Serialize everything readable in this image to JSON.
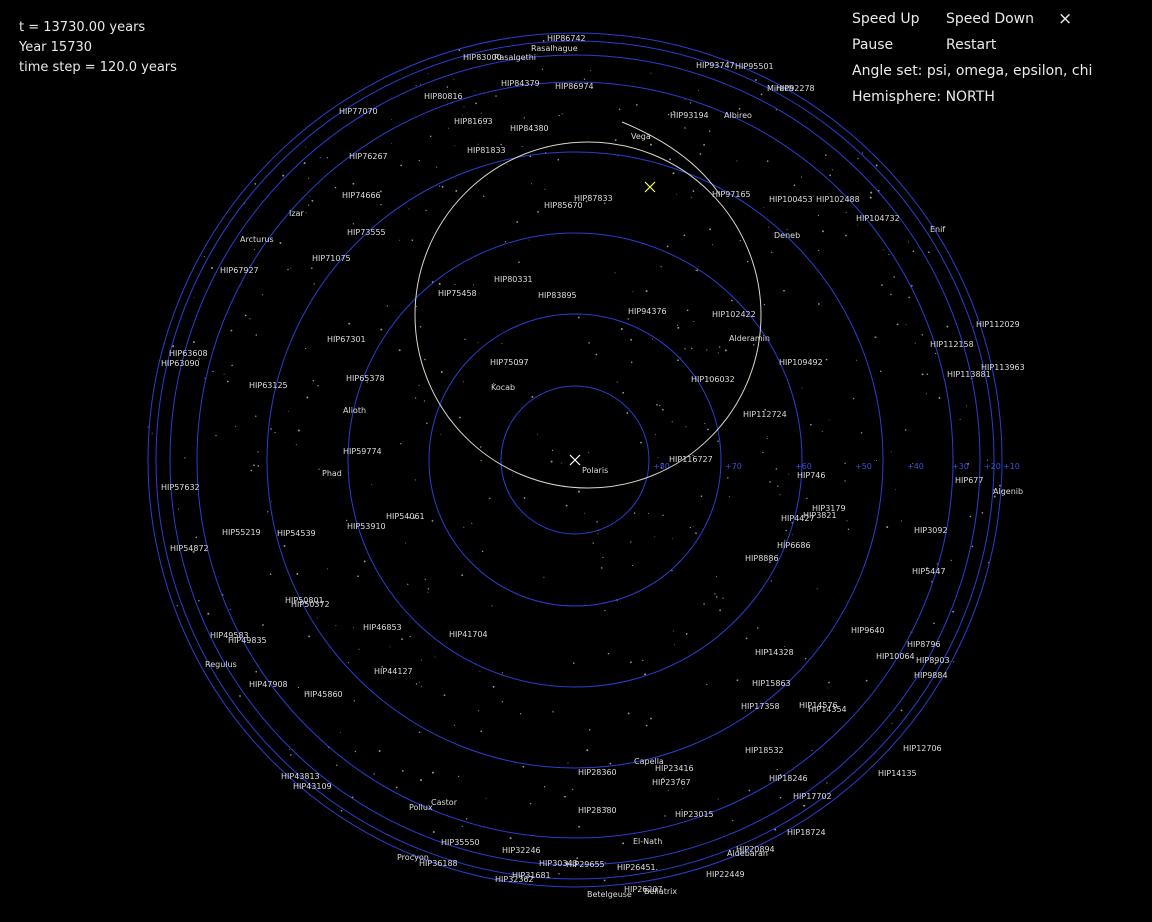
{
  "hud": {
    "time": "t = 13730.00 years",
    "year": "Year 15730",
    "step": "time step = 120.0 years"
  },
  "menu": {
    "speed_up": "Speed Up",
    "speed_down": "Speed Down",
    "close": "×",
    "pause": "Pause",
    "restart": "Restart",
    "angle_set": "Angle set: psi, omega, epsilon, chi",
    "hemisphere": "Hemisphere: NORTH"
  },
  "colors": {
    "background": "#000000",
    "rings": "#2a3ed0",
    "path": "#d8d8c8",
    "marker_now": "#ffff66",
    "marker_pole": "#ffffff",
    "labels": "#dcdcdc"
  },
  "ring_labels": [
    "+80",
    "+70",
    "+60",
    "+50",
    "+40",
    "+30",
    "+20",
    "+10"
  ],
  "pole_marker": "Polaris",
  "star_labels": [
    "HIP86742",
    "Rasalhague",
    "HIP83000",
    "Rasalgethi",
    "HIP93747",
    "HIP95501",
    "HIP92278",
    "Mirach",
    "HIP84379",
    "HIP86974",
    "HIP80816",
    "HIP77070",
    "HIP93194",
    "Albireo",
    "HIP81693",
    "HIP84380",
    "Vega",
    "HIP81833",
    "HIP76267",
    "HIP74666",
    "HIP87833",
    "HIP85670",
    "HIP97165",
    "HIP100453",
    "HIP102488",
    "HIP104732",
    "Izar",
    "HIP73555",
    "Deneb",
    "Enif",
    "Arcturus",
    "HIP71075",
    "HIP67927",
    "HIP80331",
    "HIP75458",
    "HIP83895",
    "HIP94376",
    "HIP102422",
    "HIP112029",
    "HIP67301",
    "Alderamin",
    "HIP112158",
    "HIP63608",
    "HIP63090",
    "HIP75097",
    "HIP109492",
    "HIP113963",
    "HIP65378",
    "HIP63125",
    "Kocab",
    "HIP106032",
    "HIP113881",
    "Alioth",
    "HIP112724",
    "HIP59774",
    "Polaris",
    "HIP116727",
    "Phad",
    "HIP746",
    "HIP677",
    "HIP57632",
    "Algenib",
    "HIP3179",
    "HIP54061",
    "HIP4427",
    "HIP3821",
    "HIP53910",
    "HIP55219",
    "HIP54539",
    "HIP3092",
    "HIP6686",
    "HIP54872",
    "HIP8886",
    "HIP5447",
    "HIP50801",
    "HIP50372",
    "HIP46853",
    "HIP41704",
    "HIP9640",
    "HIP49583",
    "HIP49835",
    "HIP8796",
    "Regulus",
    "HIP14328",
    "HIP10064",
    "HIP8903",
    "HIP44127",
    "HIP47908",
    "HIP9884",
    "HIP15863",
    "HIP45860",
    "HIP17358",
    "HIP14576",
    "HIP14354",
    "HIP12706",
    "HIP18532",
    "Capella",
    "HIP23416",
    "HIP28360",
    "HIP43813",
    "HIP18246",
    "HIP14135",
    "HIP23767",
    "HIP43109",
    "HIP17702",
    "Castor",
    "Pollux",
    "HIP28380",
    "HIP23015",
    "HIP18724",
    "El-Nath",
    "HIP35550",
    "HIP32246",
    "HIP20894",
    "Aldebaran",
    "Procyon",
    "HIP36188",
    "HIP30343",
    "HIP29655",
    "HIP26451",
    "HIP31681",
    "HIP22449",
    "HIP32362",
    "HIP26207",
    "Bellatrix",
    "Betelgeuse"
  ]
}
